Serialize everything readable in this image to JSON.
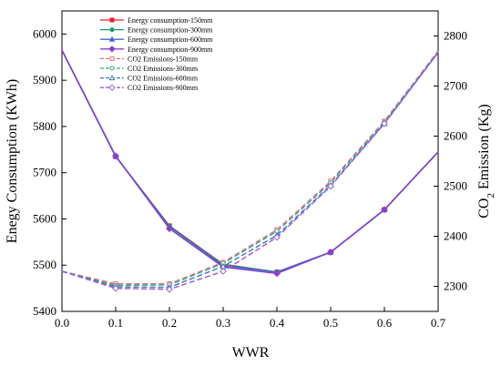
{
  "chart_data": {
    "type": "line",
    "title": "",
    "x": [
      0.0,
      0.1,
      0.2,
      0.3,
      0.4,
      0.5,
      0.6,
      0.7
    ],
    "xlabel": "WWR",
    "ylabel_left": "Enegy Consumption (KWh)",
    "ylabel_right_prefix": "CO",
    "ylabel_right_sub": "2",
    "ylabel_right_suffix": " Emission (Kg)",
    "xlim": [
      0.0,
      0.7
    ],
    "ylim_left": [
      5400,
      6050
    ],
    "ylim_right": [
      2250,
      2850
    ],
    "x_ticks": [
      "0.0",
      "0.1",
      "0.2",
      "0.3",
      "0.4",
      "0.5",
      "0.6",
      "0.7"
    ],
    "y_ticks_left": [
      "5400",
      "5500",
      "5600",
      "5700",
      "5800",
      "5900",
      "6000"
    ],
    "y_ticks_right": [
      "2300",
      "2400",
      "2500",
      "2600",
      "2700",
      "2800"
    ],
    "grid": false,
    "legend_position": "top-left",
    "series": [
      {
        "name": "Energy consumption-150mm",
        "axis": "left",
        "color": "#e8202a",
        "marker": "square-filled",
        "dashed": false,
        "values": [
          5965,
          5735,
          5585,
          5502,
          5485,
          5528,
          5620,
          5745
        ]
      },
      {
        "name": "Energy consumption-300mm",
        "axis": "left",
        "color": "#1a9a6a",
        "marker": "circle-filled",
        "dashed": false,
        "values": [
          5965,
          5735,
          5584,
          5501,
          5485,
          5528,
          5620,
          5745
        ]
      },
      {
        "name": "Energy consumption-600mm",
        "axis": "left",
        "color": "#3a6ec8",
        "marker": "triangle-filled",
        "dashed": false,
        "values": [
          5965,
          5736,
          5583,
          5499,
          5485,
          5528,
          5620,
          5745
        ]
      },
      {
        "name": "Energy consumption-900mm",
        "axis": "left",
        "color": "#8a3fd0",
        "marker": "diamond-filled",
        "dashed": false,
        "values": [
          5965,
          5736,
          5579,
          5496,
          5482,
          5528,
          5620,
          5745
        ]
      },
      {
        "name": "CO2 Emissions-150mm",
        "axis": "right",
        "color": "#f07080",
        "marker": "square-open",
        "dashed": true,
        "values": [
          2330,
          2305,
          2305,
          2348,
          2413,
          2510,
          2630,
          2770
        ]
      },
      {
        "name": "CO2 Emissions-300mm",
        "axis": "right",
        "color": "#3aa88a",
        "marker": "circle-open",
        "dashed": true,
        "values": [
          2330,
          2302,
          2303,
          2346,
          2410,
          2507,
          2628,
          2768
        ]
      },
      {
        "name": "CO2 Emissions-600mm",
        "axis": "right",
        "color": "#4a78c8",
        "marker": "triangle-open",
        "dashed": true,
        "values": [
          2330,
          2299,
          2298,
          2340,
          2402,
          2502,
          2625,
          2767
        ]
      },
      {
        "name": "CO2 Emissions-900mm",
        "axis": "right",
        "color": "#9a60d8",
        "marker": "diamond-open",
        "dashed": true,
        "values": [
          2330,
          2296,
          2294,
          2330,
          2398,
          2500,
          2625,
          2767
        ]
      }
    ]
  }
}
